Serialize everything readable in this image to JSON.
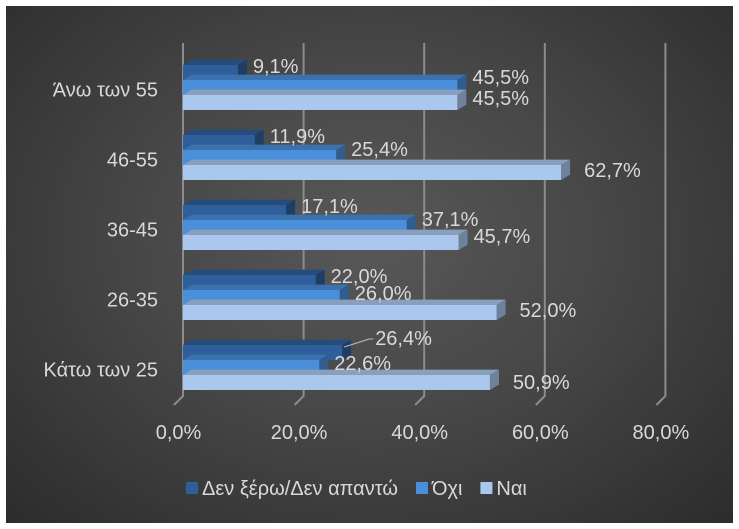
{
  "chart_data": {
    "type": "bar",
    "orientation": "horizontal",
    "style": "3d-clustered",
    "categories": [
      "Κάτω των 25",
      "26-35",
      "36-45",
      "46-55",
      "Άνω των 55"
    ],
    "series": [
      {
        "name": "Δεν ξέρω/Δεν απαντώ",
        "values": [
          26.4,
          22.0,
          17.1,
          11.9,
          9.1
        ],
        "color": "#2e5f9a"
      },
      {
        "name": "Όχι",
        "values": [
          22.6,
          26.0,
          37.1,
          25.4,
          45.5
        ],
        "color": "#4a8fd9"
      },
      {
        "name": "Ναι",
        "values": [
          50.9,
          52.0,
          45.7,
          62.7,
          45.5
        ],
        "color": "#aac8ee"
      }
    ],
    "data_labels": {
      "Δεν ξέρω/Δεν απαντώ": [
        "26,4%",
        "22,0%",
        "17,1%",
        "11,9%",
        "9,1%"
      ],
      "Όχι": [
        "22,6%",
        "26,0%",
        "37,1%",
        "25,4%",
        "45,5%"
      ],
      "Ναι": [
        "50,9%",
        "52,0%",
        "45,7%",
        "62,7%",
        "45,5%"
      ]
    },
    "x_ticks": [
      "0,0%",
      "20,0%",
      "40,0%",
      "60,0%",
      "80,0%"
    ],
    "xlim": [
      0,
      80
    ],
    "grid": true,
    "legend_position": "bottom",
    "background": "#3f3f3f",
    "text_color": "#d9d9d9",
    "gridline_color": "#8c8c8c"
  }
}
